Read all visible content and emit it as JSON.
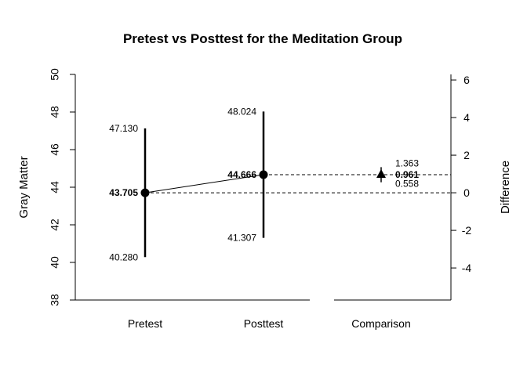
{
  "chart_data": {
    "type": "scatter",
    "title": "Pretest vs Posttest for the Meditation Group",
    "ylabel": "Gray Matter",
    "y2label": "Difference",
    "categories": [
      "Pretest",
      "Posttest",
      "Comparison"
    ],
    "ylim": [
      38,
      50
    ],
    "y_ticks": [
      "38",
      "40",
      "42",
      "44",
      "46",
      "48",
      "50"
    ],
    "y2lim": [
      -5.705,
      6.295
    ],
    "y2_ticks": [
      "-4",
      "-2",
      "0",
      "2",
      "4",
      "6"
    ],
    "points": [
      {
        "category": "Pretest",
        "mean": 43.705,
        "lower": 40.28,
        "upper": 47.13,
        "mean_label": "43.705",
        "lower_label": "40.280",
        "upper_label": "47.130"
      },
      {
        "category": "Posttest",
        "mean": 44.666,
        "lower": 41.307,
        "upper": 48.024,
        "mean_label": "44.666",
        "lower_label": "41.307",
        "upper_label": "48.024"
      }
    ],
    "comparison": {
      "category": "Comparison",
      "difference": 0.961,
      "lower": 0.558,
      "upper": 1.363,
      "difference_label": "0.961",
      "lower_label": "0.558",
      "upper_label": "1.363"
    }
  }
}
